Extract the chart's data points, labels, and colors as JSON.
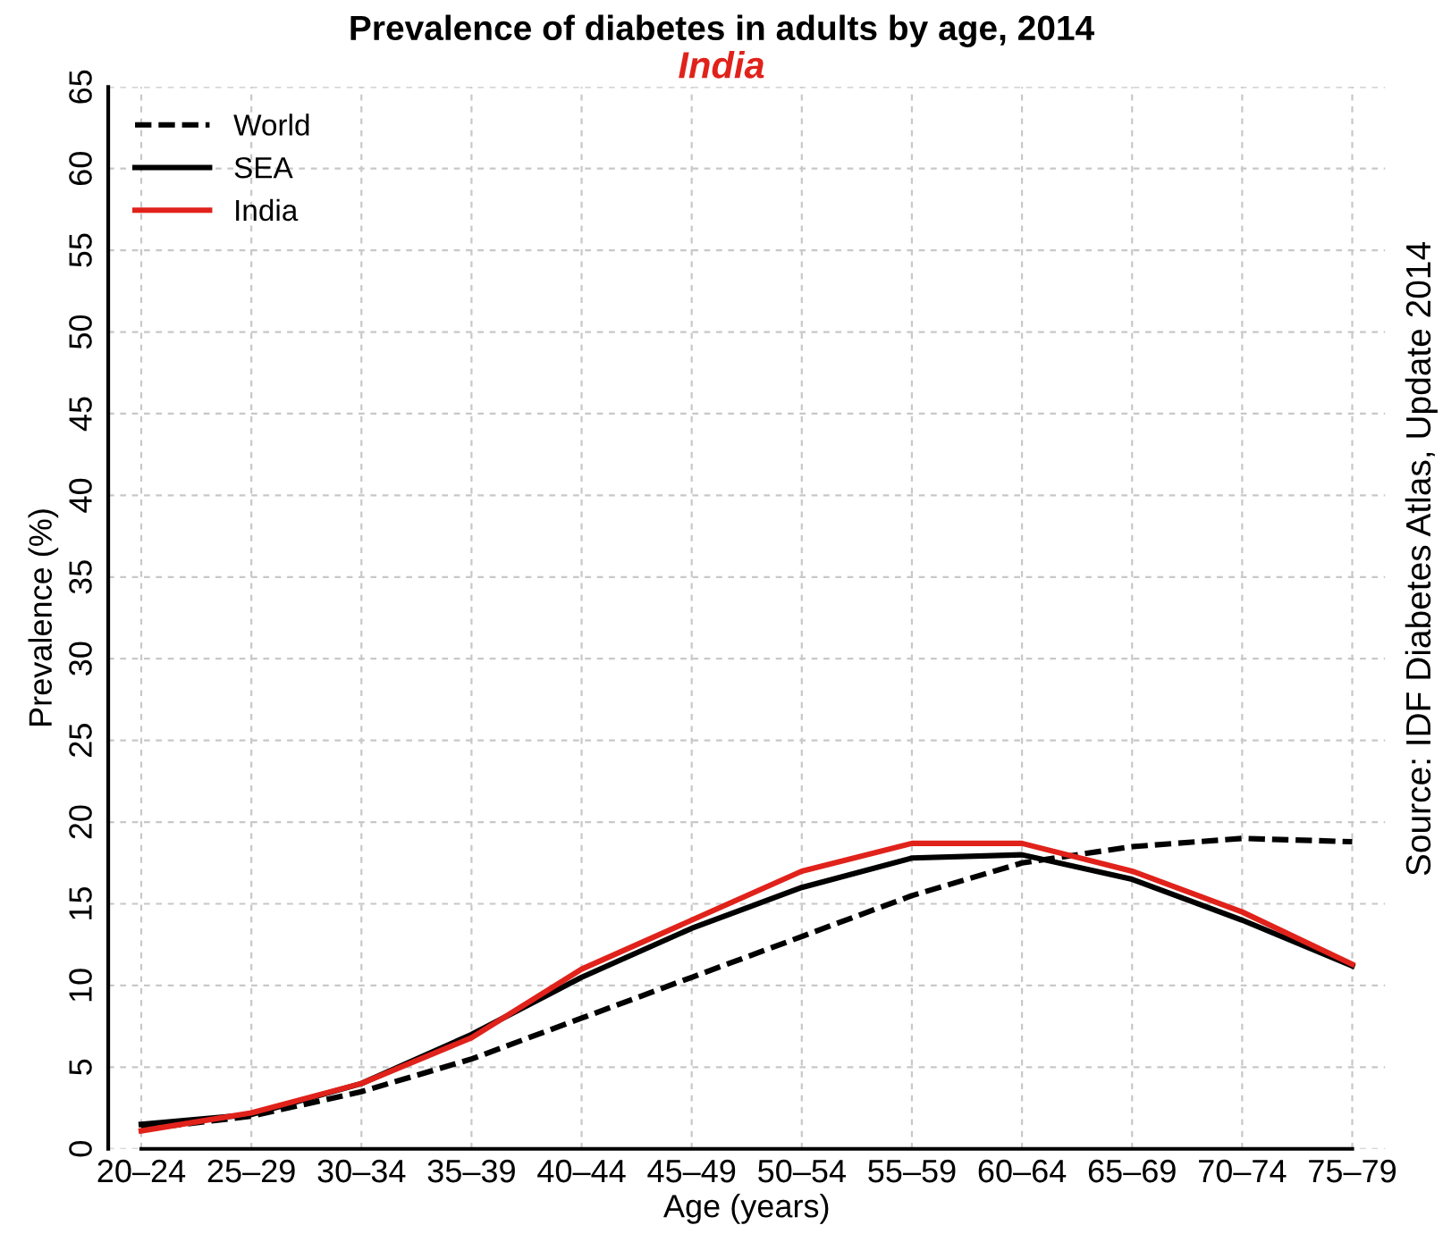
{
  "chart_data": {
    "type": "line",
    "title": "Prevalence of diabetes in adults by age, 2014",
    "subtitle": "India",
    "xlabel": "Age (years)",
    "ylabel": "Prevalence (%)",
    "annotations": [
      "Source: IDF Diabetes Atlas, Update 2014"
    ],
    "categories": [
      "20–24",
      "25–29",
      "30–34",
      "35–39",
      "40–44",
      "45–49",
      "50–54",
      "55–59",
      "60–64",
      "65–69",
      "70–74",
      "75–79"
    ],
    "series": [
      {
        "name": "World",
        "color": "#000000",
        "line_style": "dashed",
        "values": [
          1.2,
          2.0,
          3.5,
          5.5,
          8.0,
          10.5,
          13.0,
          15.5,
          17.5,
          18.5,
          19.0,
          18.8
        ]
      },
      {
        "name": "SEA",
        "color": "#000000",
        "line_style": "solid",
        "values": [
          1.5,
          2.1,
          4.0,
          7.0,
          10.5,
          13.5,
          16.0,
          17.8,
          18.0,
          16.5,
          14.0,
          11.2
        ]
      },
      {
        "name": "India",
        "color": "#e0221b",
        "line_style": "solid",
        "values": [
          1.1,
          2.2,
          4.0,
          6.8,
          11.0,
          14.0,
          17.0,
          18.7,
          18.7,
          17.0,
          14.5,
          11.3
        ]
      }
    ],
    "ylim": [
      0,
      65
    ],
    "yticks": [
      0,
      5,
      10,
      15,
      20,
      25,
      30,
      35,
      40,
      45,
      50,
      55,
      60,
      65
    ],
    "grid": true,
    "legend": "top left",
    "marker": "none"
  }
}
